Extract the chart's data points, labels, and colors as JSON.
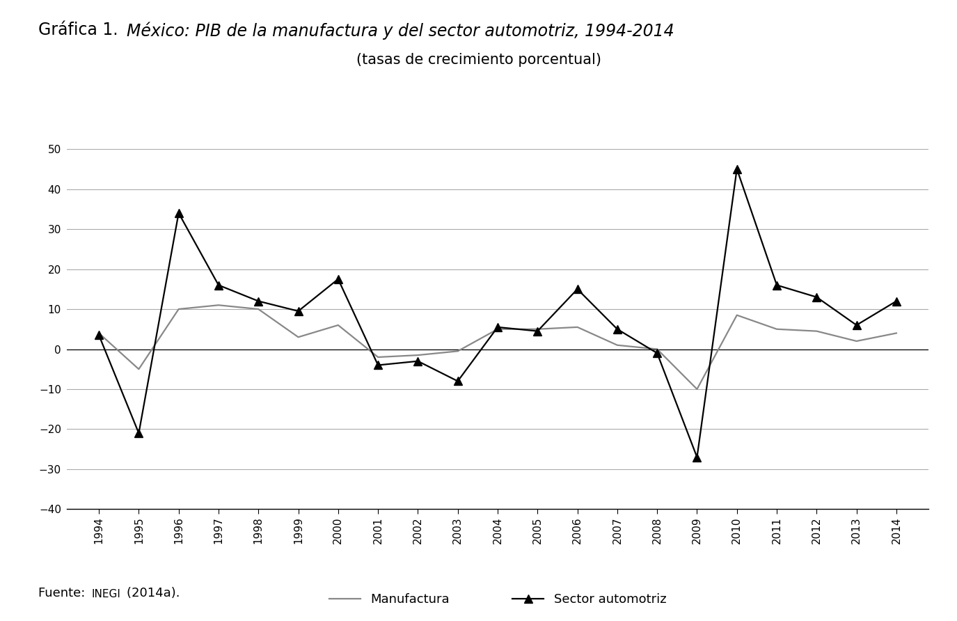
{
  "years": [
    1994,
    1995,
    1996,
    1997,
    1998,
    1999,
    2000,
    2001,
    2002,
    2003,
    2004,
    2005,
    2006,
    2007,
    2008,
    2009,
    2010,
    2011,
    2012,
    2013,
    2014
  ],
  "manufactura": [
    4.0,
    -5.0,
    10.0,
    11.0,
    10.0,
    3.0,
    6.0,
    -2.0,
    -1.5,
    -0.5,
    5.0,
    5.0,
    5.5,
    1.0,
    0.0,
    -10.0,
    8.5,
    5.0,
    4.5,
    2.0,
    4.0
  ],
  "sector_automotriz": [
    3.5,
    -21.0,
    34.0,
    16.0,
    12.0,
    9.5,
    17.5,
    -4.0,
    -3.0,
    -8.0,
    5.5,
    4.5,
    15.0,
    5.0,
    -1.0,
    -27.0,
    45.0,
    16.0,
    13.0,
    6.0,
    12.0
  ],
  "ylim": [
    -40,
    50
  ],
  "yticks": [
    -40,
    -30,
    -20,
    -10,
    0,
    10,
    20,
    30,
    40,
    50
  ],
  "title_normal": "Gráfica 1. ",
  "title_italic": "México: PIB de la manufactura y del sector automotriz, 1994-2014",
  "title_pib_small": "PIB",
  "title_line2": "(tasas de crecimiento porcentual)",
  "legend_manufactura": "Manufactura",
  "legend_automotriz": "Sector automotriz",
  "source_prefix": "Fuente: ",
  "source_inegi": "INEGI",
  "source_suffix": " (2014a).",
  "line_color_manufactura": "#888888",
  "line_color_automotriz": "#000000",
  "background_color": "#ffffff",
  "grid_color": "#aaaaaa",
  "title_fontsize": 17,
  "subtitle_fontsize": 15,
  "axis_fontsize": 11,
  "legend_fontsize": 13,
  "source_fontsize": 13
}
